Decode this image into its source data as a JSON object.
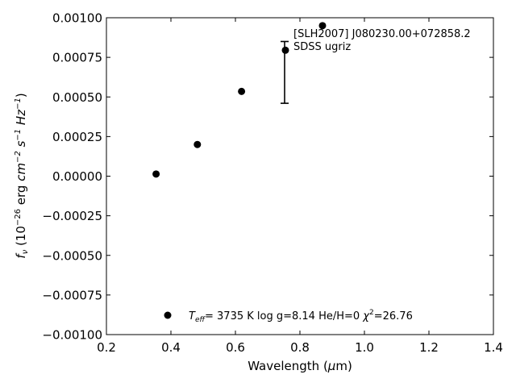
{
  "chart_data": {
    "type": "scatter",
    "xlabel_prefix": "Wavelength (",
    "xlabel_mu": "μ",
    "xlabel_suffix": "m)",
    "ylabel_base": "f",
    "ylabel_sub": "ν",
    "ylabel_mid1": " (10",
    "ylabel_exp1": "−26",
    "ylabel_mid2": " erg ",
    "ylabel_cm": "cm",
    "ylabel_exp2": "−2",
    "ylabel_s": " s",
    "ylabel_exp3": "−1",
    "ylabel_hz": " Hz",
    "ylabel_exp4": "−1",
    "ylabel_close": ")",
    "xlim": [
      0.2,
      1.4
    ],
    "ylim": [
      -0.001,
      0.001
    ],
    "xticks": [
      0.2,
      0.4,
      0.6,
      0.8,
      1.0,
      1.2,
      1.4
    ],
    "xtick_labels": [
      "0.2",
      "0.4",
      "0.6",
      "0.8",
      "1.0",
      "1.2",
      "1.4"
    ],
    "yticks": [
      0.001,
      0.00075,
      0.0005,
      0.00025,
      0.0,
      -0.00025,
      -0.0005,
      -0.00075,
      -0.001
    ],
    "ytick_labels": [
      "0.00100",
      "0.00075",
      "0.00050",
      "0.00025",
      "0.00000",
      "−0.00025",
      "−0.00050",
      "−0.00075",
      "−0.00100"
    ],
    "series": [
      {
        "x": [
          0.354,
          0.482,
          0.619,
          0.755,
          0.87
        ],
        "y": [
          1.35e-05,
          0.0002,
          0.000535,
          0.000795,
          0.00095
        ]
      }
    ],
    "error_bars": [
      {
        "x": 0.7525,
        "y_low": 0.00046,
        "y_high": 0.00085
      }
    ],
    "annotation_line1": "[SLH2007] J080230.00+072858.2",
    "annotation_line2": "SDSS ugriz",
    "legend": {
      "teff_sym": "T",
      "teff_sub": "eff",
      "teff_text": "=  3735 K  log g=8.14  He/H=0  ",
      "chi_sym": "χ",
      "chi_sup": "2",
      "chi_val": "=26.76"
    },
    "grid": false
  }
}
